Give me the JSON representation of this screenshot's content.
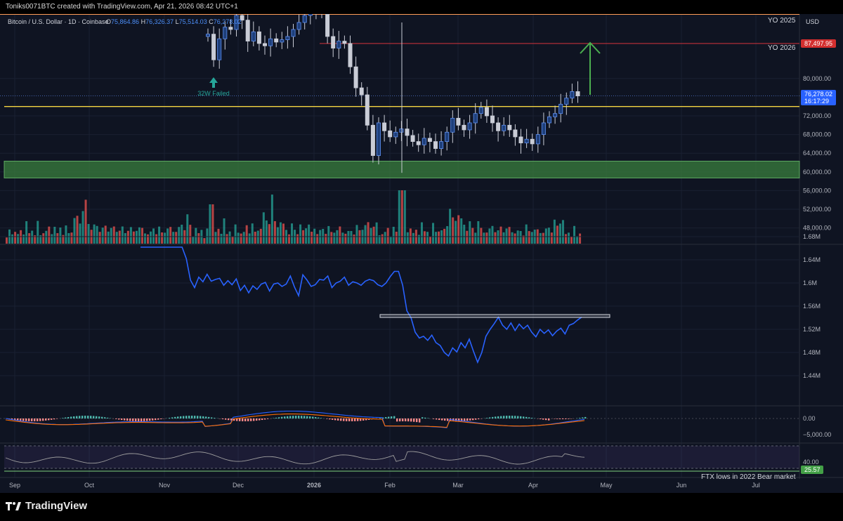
{
  "header": {
    "text": "Toniks0071BTC created with TradingView.com, Apr 21, 2026 08:42 UTC+1"
  },
  "footer": {
    "brand": "TradingView",
    "logo_icon": "tradingview-logo-icon"
  },
  "colors": {
    "background": "#131722",
    "bull": "#26a69a",
    "bear": "#ef5350",
    "indicator_line": "#2962ff",
    "support_line": "#f5d442",
    "zone_fill": "#3a7d3d",
    "level_line": "#c0313a",
    "arrow": "#4caf50"
  },
  "chart_data": [
    {
      "type": "candlestick",
      "symbol_label": "Bitcoin / U.S. Dollar · 1D · Coinbase",
      "ohlc": {
        "O_label": "O",
        "O": "75,864.86",
        "H_label": "H",
        "H": "76,326.37",
        "L_label": "L",
        "L": "75,514.03",
        "C_label": "C",
        "C": "76,278.02"
      },
      "currency": "USD",
      "y_ticks": [
        "80,000.00",
        "72,000.00",
        "68,000.00",
        "64,000.00",
        "60,000.00",
        "56,000.00",
        "52,000.00",
        "48,000.00"
      ],
      "y_tick_values": [
        80000,
        72000,
        68000,
        64000,
        60000,
        56000,
        52000,
        48000
      ],
      "x_labels": [
        "Sep",
        "Oct",
        "Nov",
        "Dec",
        "2026",
        "Feb",
        "Mar",
        "Apr",
        "May",
        "Jun",
        "Jul"
      ],
      "price_badge": "76,278.02",
      "countdown_badge": "16:17:29",
      "level_badge": "87,497.95",
      "level_badge_value": 87497.95,
      "annotations": {
        "yo2025": "YO 2025",
        "yo2026": "YO 2026",
        "failed": "32W Failed",
        "ftx": "FTX lows in 2022 Bear market"
      },
      "support_line_value": 74000,
      "zone_range": [
        58700,
        62300
      ],
      "closes": [
        89500,
        84000,
        88500,
        91000,
        90500,
        93500,
        92500,
        88000,
        90000,
        87500,
        87000,
        88500,
        87800,
        88300,
        89000,
        90500,
        92000,
        93500,
        95000,
        95500,
        94000,
        89000,
        86500,
        88000,
        87500,
        82500,
        78000,
        76500,
        70000,
        63500,
        70500,
        68800,
        67500,
        68500,
        69200,
        67800,
        66500,
        65800,
        67200,
        66500,
        65000,
        66500,
        68500,
        71500,
        70000,
        69000,
        70500,
        72500,
        73800,
        72000,
        70500,
        68800,
        70000,
        69000,
        67500,
        66200,
        67000,
        66000,
        68000,
        70500,
        71800,
        72500,
        74500,
        75800,
        77200,
        76278
      ],
      "volumes": [
        0.2,
        0.28,
        0.22,
        0.35,
        0.18,
        0.3,
        0.25,
        0.4,
        0.22,
        0.33,
        0.27,
        0.45,
        0.2,
        0.31,
        0.24,
        0.38,
        0.26,
        0.3,
        0.22,
        0.41,
        0.28,
        0.36,
        0.25,
        0.33,
        0.48,
        0.62,
        0.55,
        0.58,
        0.92,
        0.5,
        0.45,
        0.38,
        0.42,
        0.35,
        0.3,
        0.4,
        0.33,
        0.28,
        0.36,
        0.3,
        0.42,
        0.34,
        0.25,
        0.38,
        0.31,
        0.27,
        0.35,
        0.29,
        0.33,
        0.26,
        0.3,
        0.24,
        0.36,
        0.28,
        0.32,
        0.25,
        0.3,
        0.27,
        0.35,
        0.3,
        0.38,
        0.33,
        0.45,
        0.4,
        0.55,
        0.42
      ]
    },
    {
      "type": "line",
      "name": "",
      "y_ticks": [
        "1.68M",
        "1.64M",
        "1.6M",
        "1.56M",
        "1.52M",
        "1.48M",
        "1.44M"
      ],
      "y_tick_values": [
        1.68,
        1.64,
        1.6,
        1.56,
        1.52,
        1.48,
        1.44
      ],
      "x": [
        0,
        3,
        5,
        7,
        9,
        11,
        12,
        14,
        16,
        17,
        20,
        22,
        24,
        26,
        28,
        30,
        32,
        33,
        35,
        37,
        38,
        40,
        42,
        44,
        46,
        48,
        50,
        52,
        54,
        56,
        58,
        60,
        62,
        64,
        66,
        68,
        70,
        72,
        74,
        76,
        78,
        80,
        82,
        84,
        86,
        88,
        90,
        92,
        94,
        96,
        98,
        100,
        102,
        104,
        106,
        108,
        110,
        112,
        114,
        116,
        118,
        120
      ],
      "y": [
        1.705,
        1.698,
        1.702,
        1.692,
        1.688,
        1.7,
        1.69,
        1.696,
        1.687,
        1.675,
        1.672,
        1.642,
        1.605,
        1.592,
        1.61,
        1.602,
        1.615,
        1.603,
        1.606,
        1.608,
        1.596,
        1.604,
        1.597,
        1.607,
        1.587,
        1.596,
        1.583,
        1.595,
        1.589,
        1.598,
        1.601,
        1.586,
        1.598,
        1.6,
        1.594,
        1.598,
        1.612,
        1.593,
        1.578,
        1.614,
        1.605,
        1.594,
        1.597,
        1.606,
        1.605,
        1.612,
        1.592,
        1.6,
        1.603,
        1.61,
        1.596,
        1.602,
        1.6,
        1.596,
        1.603,
        1.606,
        1.604,
        1.597,
        1.594,
        1.6,
        1.611,
        1.62
      ],
      "recent_y": [
        1.62,
        1.596,
        1.552,
        1.54,
        1.515,
        1.505,
        1.508,
        1.501,
        1.51,
        1.497,
        1.492,
        1.48,
        1.474,
        1.488,
        1.481,
        1.497,
        1.488,
        1.503,
        1.482,
        1.463,
        1.48,
        1.508,
        1.52,
        1.53,
        1.541,
        1.527,
        1.52,
        1.531,
        1.518,
        1.529,
        1.521,
        1.527,
        1.515,
        1.507,
        1.52,
        1.513,
        1.519,
        1.509,
        1.517,
        1.522,
        1.512,
        1.527,
        1.53,
        1.536,
        1.541
      ],
      "box_range": [
        1.5405,
        1.5455
      ]
    },
    {
      "type": "histogram",
      "y_ticks": [
        "0.00",
        "−5,000.00"
      ],
      "y_tick_values": [
        0,
        -5000
      ]
    },
    {
      "type": "line",
      "y_ticks": [
        "40.00"
      ],
      "y_tick_values": [
        40
      ],
      "level_badge": "25.57",
      "band": [
        30,
        70
      ]
    }
  ]
}
